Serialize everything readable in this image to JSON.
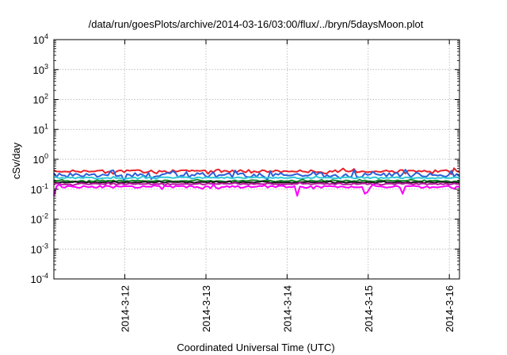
{
  "chart_data": {
    "type": "line",
    "title": "/data/run/goesPlots/archive/2014-03-16/03:00/flux/../bryn/5daysMoon.plot",
    "xlabel": "Coordinated Universal Time (UTC)",
    "ylabel": "cSv/day",
    "y_scale": "log",
    "ylim": [
      0.0001,
      10000
    ],
    "y_ticks": [
      {
        "value": 0.0001,
        "base": "10",
        "exp": "-4"
      },
      {
        "value": 0.001,
        "base": "10",
        "exp": "-3"
      },
      {
        "value": 0.01,
        "base": "10",
        "exp": "-2"
      },
      {
        "value": 0.1,
        "base": "10",
        "exp": "-1"
      },
      {
        "value": 1,
        "base": "10",
        "exp": "0"
      },
      {
        "value": 10,
        "base": "10",
        "exp": "1"
      },
      {
        "value": 100,
        "base": "10",
        "exp": "2"
      },
      {
        "value": 1000,
        "base": "10",
        "exp": "3"
      },
      {
        "value": 10000,
        "base": "10",
        "exp": "4"
      }
    ],
    "xlim": [
      "2014-03-11 03:00",
      "2014-03-16 03:00"
    ],
    "x_ticks": [
      "2014-3-12",
      "2014-3-13",
      "2014-3-14",
      "2014-3-15",
      "2014-3-16"
    ],
    "grid": true,
    "series": [
      {
        "color": "#e8202a",
        "level": 0.4,
        "var": 0.1,
        "dips": []
      },
      {
        "color": "#2b5fd8",
        "level": 0.3,
        "var": 0.18,
        "dips": [
          [
            2014031511,
            0.45
          ]
        ]
      },
      {
        "color": "#2ec8d8",
        "level": 0.24,
        "var": 0.06,
        "dips": []
      },
      {
        "color": "#1a8a2a",
        "level": 0.19,
        "var": 0.05,
        "dips": []
      },
      {
        "color": "#1a1a1a",
        "level": 0.17,
        "var": 0.04,
        "dips": []
      },
      {
        "color": "#b5179e",
        "level": 0.15,
        "var": 0.05,
        "dips": []
      },
      {
        "color": "#ff00ff",
        "level": 0.12,
        "var": 0.08,
        "dips": [
          [
            2014031403,
            0.06
          ],
          [
            2014031423,
            0.07
          ],
          [
            2014031500,
            0.08
          ],
          [
            2014031445,
            0.06
          ],
          [
            2014031510,
            0.07
          ]
        ]
      }
    ]
  }
}
